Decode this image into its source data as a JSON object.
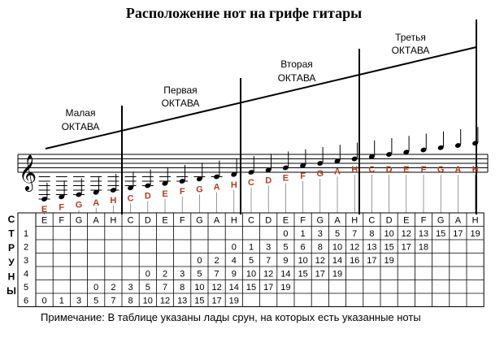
{
  "title": "Расположение нот на грифе гитары",
  "octaves": [
    {
      "name": "Малая",
      "label": "ОКТАВА"
    },
    {
      "name": "Первая",
      "label": "ОКТАВА"
    },
    {
      "name": "Вторая",
      "label": "ОКТАВА"
    },
    {
      "name": "Третья",
      "label": "ОКТАВА"
    }
  ],
  "notes": [
    "E",
    "F",
    "G",
    "A",
    "H",
    "C",
    "D",
    "E",
    "F",
    "G",
    "A",
    "H",
    "C",
    "D",
    "E",
    "F",
    "G",
    "A",
    "H",
    "C",
    "D",
    "E",
    "F",
    "G",
    "A",
    "H"
  ],
  "strings_label": [
    "С",
    "Т",
    "Р",
    "У",
    "Н",
    "Ы"
  ],
  "string_numbers": [
    "1",
    "2",
    "3",
    "4",
    "5",
    "6"
  ],
  "frets": [
    [
      "",
      "",
      "",
      "",
      "",
      "",
      "",
      "",
      "",
      "",
      "",
      "",
      "",
      "",
      "0",
      "1",
      "3",
      "5",
      "7",
      "8",
      "10",
      "12",
      "13",
      "15",
      "17",
      "19"
    ],
    [
      "",
      "",
      "",
      "",
      "",
      "",
      "",
      "",
      "",
      "",
      "",
      "0",
      "1",
      "3",
      "5",
      "6",
      "8",
      "10",
      "12",
      "13",
      "15",
      "17",
      "18",
      "",
      "",
      ""
    ],
    [
      "",
      "",
      "",
      "",
      "",
      "",
      "",
      "",
      "",
      "0",
      "2",
      "4",
      "5",
      "7",
      "9",
      "10",
      "12",
      "14",
      "16",
      "17",
      "19",
      "",
      "",
      "",
      "",
      ""
    ],
    [
      "",
      "",
      "",
      "",
      "",
      "",
      "0",
      "2",
      "3",
      "5",
      "7",
      "9",
      "10",
      "12",
      "14",
      "15",
      "17",
      "19",
      "",
      "",
      "",
      "",
      "",
      "",
      "",
      ""
    ],
    [
      "",
      "",
      "",
      "0",
      "2",
      "3",
      "5",
      "7",
      "8",
      "10",
      "12",
      "14",
      "15",
      "17",
      "19",
      "",
      "",
      "",
      "",
      "",
      "",
      "",
      "",
      "",
      "",
      ""
    ],
    [
      "0",
      "1",
      "3",
      "5",
      "7",
      "8",
      "10",
      "12",
      "13",
      "15",
      "17",
      "19",
      "",
      "",
      "",
      "",
      "",
      "",
      "",
      "",
      "",
      "",
      "",
      "",
      "",
      ""
    ]
  ],
  "note": "Примечание: В таблице указаны лады срун, на которых есть указанные ноты",
  "colors": {
    "note_letter": "#b0401a",
    "ink": "#000000"
  }
}
